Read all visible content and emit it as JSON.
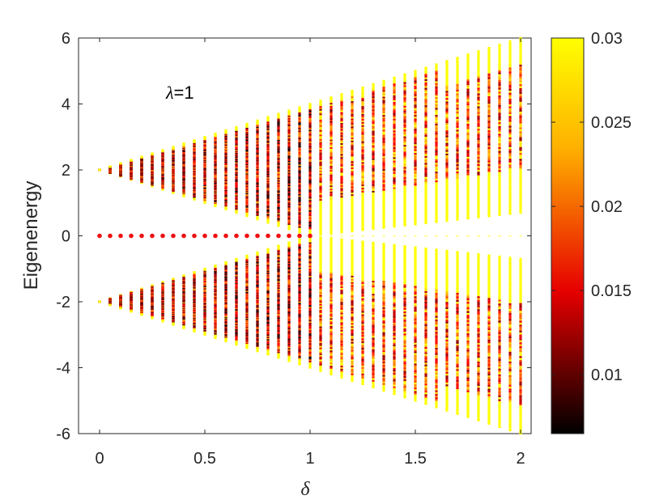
{
  "chart_data": {
    "type": "scatter",
    "annotation": {
      "symbol": "λ",
      "text": "=1"
    },
    "xlabel": "δ",
    "ylabel": "Eigenenergy",
    "xlim": [
      -0.1,
      2.05
    ],
    "ylim": [
      -6,
      6
    ],
    "xticks": [
      0,
      0.5,
      1,
      1.5,
      2
    ],
    "xtick_labels": [
      "0",
      "0.5",
      "1",
      "1.5",
      "2"
    ],
    "yticks": [
      -6,
      -4,
      -2,
      0,
      2,
      4,
      6
    ],
    "ytick_labels": [
      "-6",
      "-4",
      "-2",
      "0",
      "2",
      "4",
      "6"
    ],
    "grid": false,
    "delta_values": [
      0,
      0.05,
      0.1,
      0.15,
      0.2,
      0.25,
      0.3,
      0.35,
      0.4,
      0.45,
      0.5,
      0.55,
      0.6,
      0.65,
      0.7,
      0.75,
      0.8,
      0.85,
      0.9,
      0.95,
      1.0,
      1.05,
      1.1,
      1.15,
      1.2,
      1.25,
      1.3,
      1.35,
      1.4,
      1.45,
      1.5,
      1.55,
      1.6,
      1.65,
      1.7,
      1.75,
      1.8,
      1.85,
      1.9,
      1.95,
      2.0
    ],
    "bands": {
      "upper_band": "E from |1-δ| to 2+2δ, for δ < 1 gap closes near 1",
      "lower_band": "symmetric about E = 0"
    },
    "zero_modes": {
      "energy": 0,
      "delta": [
        0,
        0.05,
        0.1,
        0.15,
        0.2,
        0.25,
        0.3,
        0.35,
        0.4,
        0.45,
        0.5,
        0.55,
        0.6,
        0.65,
        0.7,
        0.75,
        0.8,
        0.85,
        0.9,
        0.95,
        1.0
      ],
      "color_value": 0.018
    },
    "colorbar": {
      "min": 0.0065,
      "max": 0.03,
      "ticks": [
        0.01,
        0.015,
        0.02,
        0.025,
        0.03
      ],
      "tick_labels": [
        "0.01",
        "0.015",
        "0.02",
        "0.025",
        "0.03"
      ],
      "colormap": "hot"
    }
  }
}
